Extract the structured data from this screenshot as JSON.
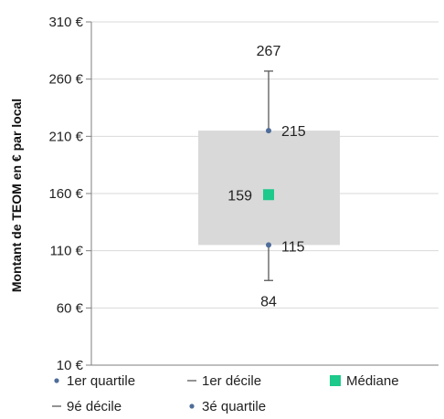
{
  "chart_data": {
    "type": "box",
    "title": "",
    "xlabel": "",
    "ylabel": "Montant de TEOM en € par local",
    "ylim": [
      10,
      310
    ],
    "y_ticks": [
      10,
      60,
      110,
      160,
      210,
      260,
      310
    ],
    "y_tick_labels": [
      "10 €",
      "60 €",
      "110 €",
      "160 €",
      "210 €",
      "260 €",
      "310 €"
    ],
    "grid": true,
    "legend_position": "bottom",
    "box": {
      "decile_1": 84,
      "quartile_1": 115,
      "median": 159,
      "quartile_3": 215,
      "decile_9": 267
    },
    "data_labels": {
      "decile_1": "84",
      "quartile_1": "115",
      "median": "159",
      "quartile_3": "215",
      "decile_9": "267"
    },
    "legend": [
      {
        "key": "quartile_1",
        "label": "1er quartile",
        "marker": "dot"
      },
      {
        "key": "decile_1",
        "label": "1er décile",
        "marker": "dash"
      },
      {
        "key": "median",
        "label": "Médiane",
        "marker": "square"
      },
      {
        "key": "decile_9",
        "label": "9é décile",
        "marker": "dash"
      },
      {
        "key": "quartile_3",
        "label": "3é quartile",
        "marker": "dot"
      }
    ],
    "colors": {
      "box_fill": "#d9d9d9",
      "median": "#1dc98b",
      "dot": "#4f6d9a",
      "whisker": "#595959",
      "grid": "#d9d9d9",
      "axis": "#7f7f7f"
    }
  }
}
